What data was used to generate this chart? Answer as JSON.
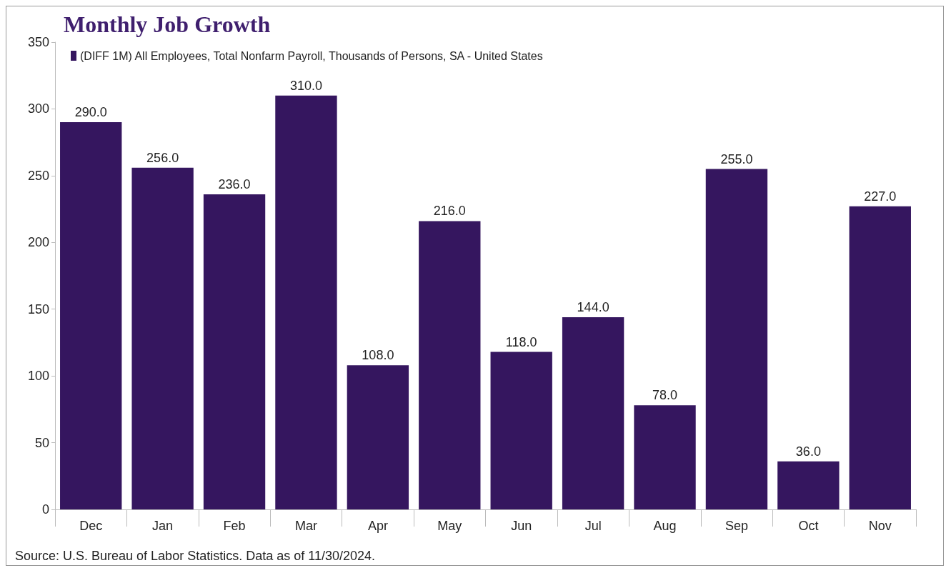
{
  "chart_data": {
    "type": "bar",
    "title": "Monthly Job Growth",
    "categories": [
      "Dec",
      "Jan",
      "Feb",
      "Mar",
      "Apr",
      "May",
      "Jun",
      "Jul",
      "Aug",
      "Sep",
      "Oct",
      "Nov"
    ],
    "series": [
      {
        "name": "(DIFF 1M) All Employees, Total Nonfarm Payroll, Thousands of Persons, SA - United States",
        "color": "#35165f",
        "values": [
          290,
          256,
          236,
          310,
          108,
          216,
          118,
          144,
          78,
          255,
          36,
          227
        ],
        "value_labels": [
          "290.0",
          "256.0",
          "236.0",
          "310.0",
          "108.0",
          "216.0",
          "118.0",
          "144.0",
          "78.0",
          "255.0",
          "36.0",
          "227.0"
        ]
      }
    ],
    "ylim": [
      0,
      350
    ],
    "yticks": [
      0,
      50,
      100,
      150,
      200,
      250,
      300,
      350
    ],
    "legend": "top left",
    "annotations": [
      "Source: U.S. Bureau of Labor Statistics. Data as of 11/30/2024."
    ]
  }
}
